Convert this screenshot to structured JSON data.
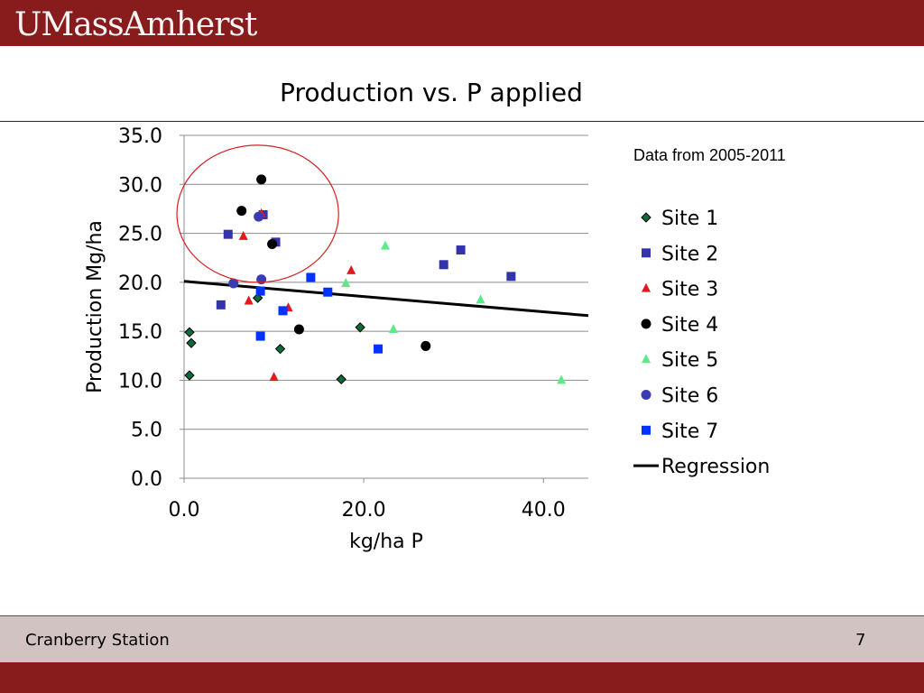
{
  "header": {
    "logo_text": "UMassAmherst"
  },
  "slide": {
    "title": "Production vs. P applied",
    "note": "Data from 2005-2011"
  },
  "footer": {
    "left_text": "Cranberry Station",
    "page_number": "7"
  },
  "colors": {
    "brand": "#881c1c",
    "footer_bg": "#d2c3c3"
  },
  "chart_data": {
    "type": "scatter",
    "title": "",
    "xlabel": "kg/ha P",
    "ylabel": "Production Mg/ha",
    "xlim": [
      0,
      45
    ],
    "ylim": [
      0,
      35
    ],
    "x_ticks": [
      "0.0",
      "20.0",
      "40.0"
    ],
    "y_ticks": [
      "0.0",
      "5.0",
      "10.0",
      "15.0",
      "20.0",
      "25.0",
      "30.0",
      "35.0"
    ],
    "grid": true,
    "legend_position": "right",
    "series": [
      {
        "name": "Site 1",
        "marker": "diamond",
        "color": "#0b6b3a",
        "points": [
          [
            0.6,
            14.9
          ],
          [
            0.8,
            13.8
          ],
          [
            0.6,
            10.5
          ],
          [
            8.2,
            18.4
          ],
          [
            10.7,
            13.2
          ],
          [
            17.5,
            10.1
          ],
          [
            19.6,
            15.4
          ]
        ]
      },
      {
        "name": "Site 2",
        "marker": "square",
        "color": "#3333aa",
        "points": [
          [
            4.9,
            24.9
          ],
          [
            8.8,
            26.9
          ],
          [
            10.2,
            24.1
          ],
          [
            4.1,
            17.7
          ],
          [
            28.9,
            21.8
          ],
          [
            30.8,
            23.3
          ],
          [
            36.4,
            20.6
          ]
        ]
      },
      {
        "name": "Site 3",
        "marker": "triangle",
        "color": "#e31a1c",
        "points": [
          [
            6.6,
            24.7
          ],
          [
            8.6,
            27.0
          ],
          [
            7.2,
            18.1
          ],
          [
            11.6,
            17.4
          ],
          [
            10.0,
            10.3
          ],
          [
            18.6,
            21.2
          ]
        ]
      },
      {
        "name": "Site 4",
        "marker": "circle",
        "color": "#000000",
        "points": [
          [
            8.6,
            30.5
          ],
          [
            6.4,
            27.3
          ],
          [
            9.8,
            23.9
          ],
          [
            12.8,
            15.2
          ],
          [
            26.9,
            13.5
          ]
        ]
      },
      {
        "name": "Site 5",
        "marker": "triangle",
        "color": "#5ee88a",
        "points": [
          [
            22.4,
            23.7
          ],
          [
            18.0,
            19.9
          ],
          [
            23.3,
            15.2
          ],
          [
            33.0,
            18.2
          ],
          [
            42.0,
            10.0
          ]
        ]
      },
      {
        "name": "Site 6",
        "marker": "circle",
        "color": "#3b3bb3",
        "points": [
          [
            8.3,
            26.7
          ],
          [
            5.5,
            19.9
          ],
          [
            8.6,
            20.3
          ]
        ]
      },
      {
        "name": "Site 7",
        "marker": "square",
        "color": "#0033ff",
        "points": [
          [
            14.1,
            20.5
          ],
          [
            16.0,
            19.0
          ],
          [
            11.0,
            17.1
          ],
          [
            8.5,
            19.1
          ],
          [
            8.5,
            14.5
          ],
          [
            21.6,
            13.2
          ]
        ]
      }
    ],
    "regression": {
      "name": "Regression",
      "color": "#000000",
      "x": [
        0,
        45
      ],
      "y": [
        20.1,
        16.6
      ]
    },
    "annotation": {
      "type": "circle",
      "color": "#d62020",
      "center": [
        8.2,
        27.0
      ],
      "radius_x": 9.0,
      "radius_y": 7.0
    }
  }
}
